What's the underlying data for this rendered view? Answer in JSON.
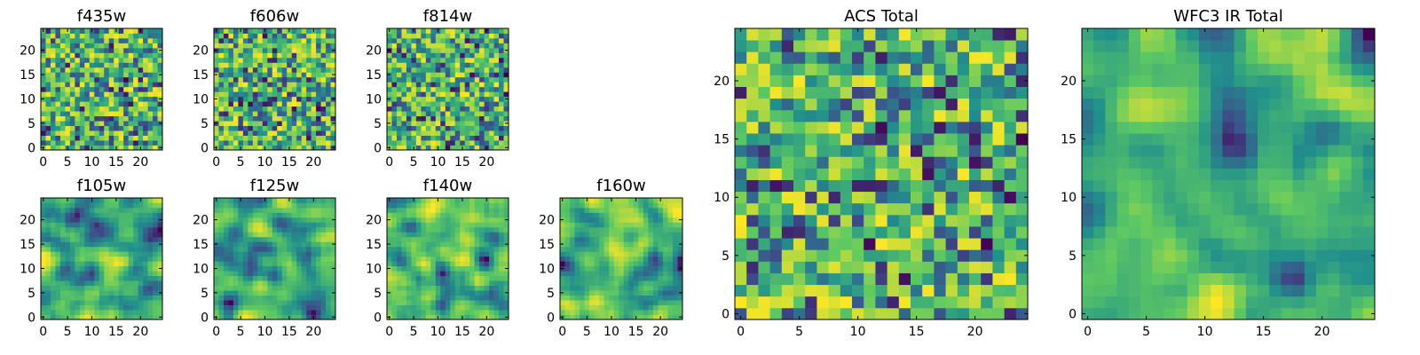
{
  "chart_data": [
    {
      "type": "heatmap",
      "title": "f435w",
      "grid_size": 25,
      "xlim": [
        0,
        24
      ],
      "ylim": [
        0,
        24
      ],
      "xticks": [
        "0",
        "5",
        "10",
        "15",
        "20"
      ],
      "yticks": [
        "0",
        "5",
        "10",
        "15",
        "20"
      ],
      "colormap": [
        "#440154",
        "#3b528b",
        "#21918c",
        "#5ec962",
        "#fde725"
      ],
      "smoothness": 0
    },
    {
      "type": "heatmap",
      "title": "f606w",
      "grid_size": 25,
      "xlim": [
        0,
        24
      ],
      "ylim": [
        0,
        24
      ],
      "xticks": [
        "0",
        "5",
        "10",
        "15",
        "20"
      ],
      "yticks": [
        "0",
        "5",
        "10",
        "15",
        "20"
      ],
      "colormap": [
        "#440154",
        "#3b528b",
        "#21918c",
        "#5ec962",
        "#fde725"
      ],
      "smoothness": 0
    },
    {
      "type": "heatmap",
      "title": "f814w",
      "grid_size": 25,
      "xlim": [
        0,
        24
      ],
      "ylim": [
        0,
        24
      ],
      "xticks": [
        "0",
        "5",
        "10",
        "15",
        "20"
      ],
      "yticks": [
        "0",
        "5",
        "10",
        "15",
        "20"
      ],
      "colormap": [
        "#440154",
        "#3b528b",
        "#21918c",
        "#5ec962",
        "#fde725"
      ],
      "smoothness": 0
    },
    {
      "type": "heatmap",
      "title": "f105w",
      "grid_size": 25,
      "xlim": [
        0,
        24
      ],
      "ylim": [
        0,
        24
      ],
      "xticks": [
        "0",
        "5",
        "10",
        "15",
        "20"
      ],
      "yticks": [
        "0",
        "5",
        "10",
        "15",
        "20"
      ],
      "colormap": [
        "#440154",
        "#3b528b",
        "#21918c",
        "#5ec962",
        "#fde725"
      ],
      "smoothness": 2
    },
    {
      "type": "heatmap",
      "title": "f125w",
      "grid_size": 25,
      "xlim": [
        0,
        24
      ],
      "ylim": [
        0,
        24
      ],
      "xticks": [
        "0",
        "5",
        "10",
        "15",
        "20"
      ],
      "yticks": [
        "0",
        "5",
        "10",
        "15",
        "20"
      ],
      "colormap": [
        "#440154",
        "#3b528b",
        "#21918c",
        "#5ec962",
        "#fde725"
      ],
      "smoothness": 2
    },
    {
      "type": "heatmap",
      "title": "f140w",
      "grid_size": 25,
      "xlim": [
        0,
        24
      ],
      "ylim": [
        0,
        24
      ],
      "xticks": [
        "0",
        "5",
        "10",
        "15",
        "20"
      ],
      "yticks": [
        "0",
        "5",
        "10",
        "15",
        "20"
      ],
      "colormap": [
        "#440154",
        "#3b528b",
        "#21918c",
        "#5ec962",
        "#fde725"
      ],
      "smoothness": 2
    },
    {
      "type": "heatmap",
      "title": "f160w",
      "grid_size": 25,
      "xlim": [
        0,
        24
      ],
      "ylim": [
        0,
        24
      ],
      "xticks": [
        "0",
        "5",
        "10",
        "15",
        "20"
      ],
      "yticks": [
        "0",
        "5",
        "10",
        "15",
        "20"
      ],
      "colormap": [
        "#440154",
        "#3b528b",
        "#21918c",
        "#5ec962",
        "#fde725"
      ],
      "smoothness": 2
    },
    {
      "type": "heatmap",
      "title": "ACS Total",
      "grid_size": 25,
      "xlim": [
        0,
        24
      ],
      "ylim": [
        0,
        24
      ],
      "xticks": [
        "0",
        "5",
        "10",
        "15",
        "20"
      ],
      "yticks": [
        "0",
        "5",
        "10",
        "15",
        "20"
      ],
      "colormap": [
        "#440154",
        "#3b528b",
        "#21918c",
        "#5ec962",
        "#fde725"
      ],
      "smoothness": 0
    },
    {
      "type": "heatmap",
      "title": "WFC3 IR Total",
      "grid_size": 25,
      "xlim": [
        0,
        24
      ],
      "ylim": [
        0,
        24
      ],
      "xticks": [
        "0",
        "5",
        "10",
        "15",
        "20"
      ],
      "yticks": [
        "0",
        "5",
        "10",
        "15",
        "20"
      ],
      "colormap": [
        "#440154",
        "#3b528b",
        "#21918c",
        "#5ec962",
        "#fde725"
      ],
      "smoothness": 2
    }
  ]
}
